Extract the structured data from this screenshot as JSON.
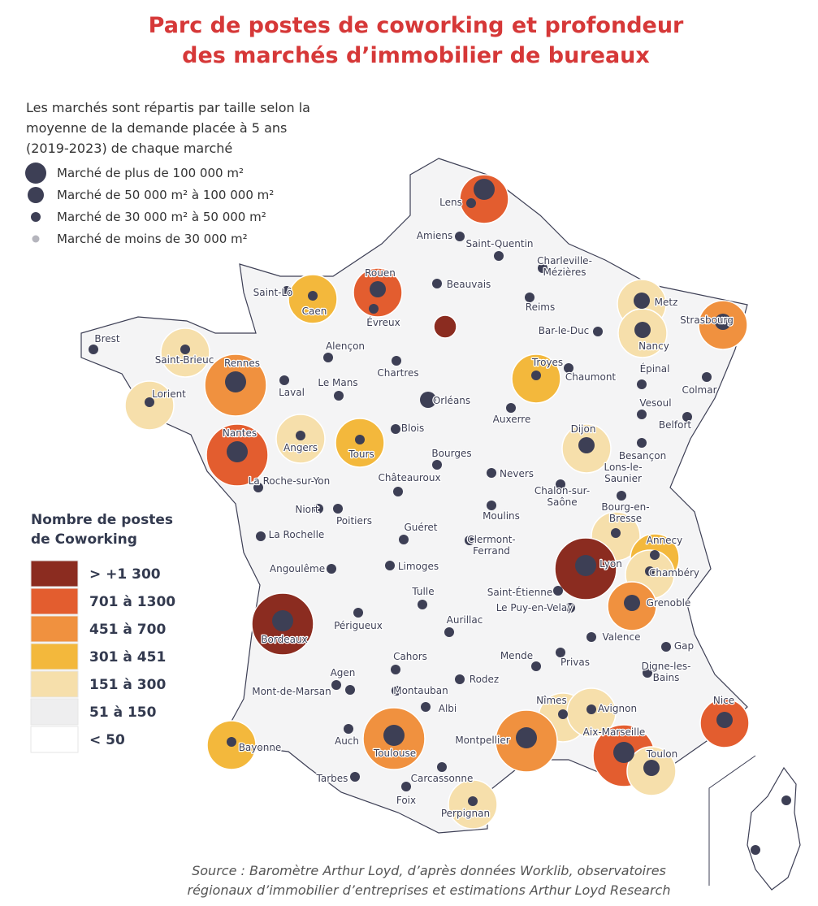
{
  "header": {
    "title": [
      "Parc de postes de coworking et profondeur",
      "des marchés d’immobilier de bureaux"
    ]
  },
  "size_legend": {
    "intro": [
      "Les marchés sont répartis par taille selon la",
      "moyenne de la demande placée à 5 ans",
      "(2019-2023) de chaque marché"
    ],
    "entries": [
      "Marché de plus de 100 000 m²",
      "Marché de 50 000 m² à 100 000 m²",
      "Marché de 30 000 m² à 50 000 m²",
      "Marché de moins de 30 000 m²"
    ]
  },
  "color_legend": {
    "title": [
      "Nombre de postes",
      "de Coworking"
    ],
    "entries": [
      {
        "label": "> +1 300",
        "color": "#8b2c20"
      },
      {
        "label": "701 à 1300",
        "color": "#e35d2f"
      },
      {
        "label": "451 à 700",
        "color": "#f0913f"
      },
      {
        "label": "301 à 451",
        "color": "#f3b83c"
      },
      {
        "label": "151 à 300",
        "color": "#f6dfab"
      },
      {
        "label": "51 à 150",
        "color": "#eeeeef"
      },
      {
        "label": "< 50",
        "color": "#ffffff"
      }
    ]
  },
  "cities": [
    [
      "Lens"
    ],
    [
      "Amiens"
    ],
    [
      "Saint-Quentin"
    ],
    [
      "Charleville-",
      "Mézières"
    ],
    [
      "Beauvais"
    ],
    [
      "Rouen"
    ],
    [
      "Saint-Lô"
    ],
    [
      "Caen"
    ],
    [
      "Évreux"
    ],
    [
      "Reims"
    ],
    [
      "Metz"
    ],
    [
      "Strasbourg"
    ],
    [
      "Bar-le-Duc"
    ],
    [
      "Nancy"
    ],
    [
      "Brest"
    ],
    [
      "Saint-Brieuc"
    ],
    [
      "Rennes"
    ],
    [
      "Alençon"
    ],
    [
      "Chartres"
    ],
    [
      "Troyes"
    ],
    [
      "Chaumont"
    ],
    [
      "Épinal"
    ],
    [
      "Lorient"
    ],
    [
      "Laval"
    ],
    [
      "Le Mans"
    ],
    [
      "Colmar"
    ],
    [
      "Vesoul"
    ],
    [
      "Orléans"
    ],
    [
      "Auxerre"
    ],
    [
      "Belfort"
    ],
    [
      "Dijon"
    ],
    [
      "Nantes"
    ],
    [
      "Angers"
    ],
    [
      "Tours"
    ],
    [
      "Blois"
    ],
    [
      "Bourges"
    ],
    [
      "Besançon"
    ],
    [
      "Nevers"
    ],
    [
      "Lons-le-",
      "Saunier"
    ],
    [
      "La Roche-sur-Yon"
    ],
    [
      "Châteauroux"
    ],
    [
      "Chalon-sur-",
      "Saône"
    ],
    [
      "Niort"
    ],
    [
      "Poitiers"
    ],
    [
      "Moulins"
    ],
    [
      "Bourg-en-",
      "Bresse"
    ],
    [
      "Annecy"
    ],
    [
      "La Rochelle"
    ],
    [
      "Guéret"
    ],
    [
      "Clermont-",
      "Ferrand"
    ],
    [
      "Lyon"
    ],
    [
      "Angoulême"
    ],
    [
      "Limoges"
    ],
    [
      "Chambéry"
    ],
    [
      "Tulle"
    ],
    [
      "Saint-Étienne"
    ],
    [
      "Le Puy-en-Velay"
    ],
    [
      "Grenoble"
    ],
    [
      "Bordeaux"
    ],
    [
      "Périgueux"
    ],
    [
      "Aurillac"
    ],
    [
      "Valence"
    ],
    [
      "Gap"
    ],
    [
      "Cahors"
    ],
    [
      "Agen"
    ],
    [
      "Mende"
    ],
    [
      "Digne-les-",
      "Bains"
    ],
    [
      "Privas"
    ],
    [
      "Rodez"
    ],
    [
      "Montauban"
    ],
    [
      "Mont-de-Marsan"
    ],
    [
      "Nîmes"
    ],
    [
      "Albi"
    ],
    [
      "Avignon"
    ],
    [
      "Nice"
    ],
    [
      "Montpellier"
    ],
    [
      "Aix-Marseille"
    ],
    [
      "Toulouse"
    ],
    [
      "Bayonne"
    ],
    [
      "Auch"
    ],
    [
      "Toulon"
    ],
    [
      "Carcassonne"
    ],
    [
      "Tarbes"
    ],
    [
      "Foix"
    ],
    [
      "Perpignan"
    ]
  ],
  "source": [
    "Source : Baromètre Arthur Loyd, d’après données Worklib, observatoires",
    "régionaux d’immobilier d’entreprises et estimations Arthur Loyd Research"
  ]
}
